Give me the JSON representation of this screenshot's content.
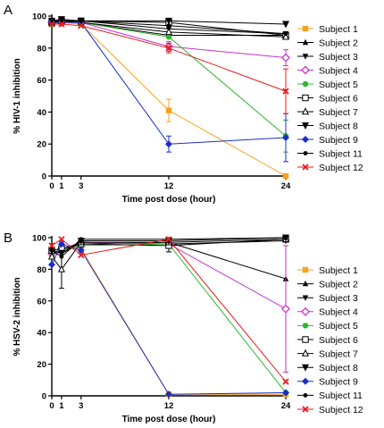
{
  "chart_data": [
    {
      "type": "line",
      "panel": "A",
      "ylabel": "% HIV-1 inhibition",
      "xlabel": "Time post dose (hour)",
      "x": [
        0,
        1,
        3,
        12,
        24
      ],
      "x_ticks": [
        0,
        1,
        3,
        12,
        24
      ],
      "y_ticks": [
        0,
        20,
        40,
        60,
        80,
        100
      ],
      "ylim": [
        0,
        100
      ],
      "xlim": [
        0,
        24
      ],
      "legend_position": "right",
      "series": [
        {
          "name": "Subject 1",
          "color": "#F7A21B",
          "marker": "square",
          "values": [
            96,
            96,
            95,
            41,
            0
          ],
          "err": [
            0,
            0,
            0,
            7,
            0
          ]
        },
        {
          "name": "Subject 2",
          "color": "#000000",
          "marker": "triangle-up",
          "values": [
            96,
            97,
            96,
            88,
            88
          ],
          "err": [
            0,
            0,
            0,
            0,
            0
          ]
        },
        {
          "name": "Subject 3",
          "color": "#000000",
          "marker": "triangle-down",
          "values": [
            97,
            97,
            97,
            92,
            89
          ],
          "err": [
            0,
            0,
            0,
            0,
            0
          ]
        },
        {
          "name": "Subject 4",
          "color": "#C832C8",
          "marker": "diamond-open",
          "values": [
            96,
            96,
            96,
            81,
            74
          ],
          "err": [
            0,
            0,
            0,
            3,
            5
          ]
        },
        {
          "name": "Subject 5",
          "color": "#2DB82D",
          "marker": "circle",
          "values": [
            95,
            96,
            96,
            87,
            25
          ],
          "err": [
            0,
            0,
            0,
            0,
            10
          ]
        },
        {
          "name": "Subject 6",
          "color": "#000000",
          "marker": "square-open",
          "values": [
            96,
            97,
            97,
            96,
            88
          ],
          "err": [
            0,
            0,
            0,
            2,
            0
          ]
        },
        {
          "name": "Subject 7",
          "color": "#000000",
          "marker": "triangle-open",
          "values": [
            96,
            97,
            96,
            90,
            87
          ],
          "err": [
            0,
            0,
            0,
            0,
            0
          ]
        },
        {
          "name": "Subject 8",
          "color": "#000000",
          "marker": "triangle-down-big",
          "values": [
            97,
            98,
            97,
            97,
            95
          ],
          "err": [
            0,
            0,
            0,
            0,
            0
          ]
        },
        {
          "name": "Subject 9",
          "color": "#1A2DC8",
          "marker": "diamond",
          "values": [
            96,
            96,
            96,
            20,
            24
          ],
          "err": [
            0,
            0,
            0,
            5,
            15
          ]
        },
        {
          "name": "Subject 11",
          "color": "#000000",
          "marker": "dot",
          "values": [
            96,
            97,
            97,
            94,
            89
          ],
          "err": [
            0,
            0,
            0,
            0,
            0
          ]
        },
        {
          "name": "Subject 12",
          "color": "#E81C1C",
          "marker": "x",
          "values": [
            95,
            95,
            94,
            80,
            53
          ],
          "err": [
            0,
            0,
            0,
            3,
            14
          ]
        }
      ]
    },
    {
      "type": "line",
      "panel": "B",
      "ylabel": "% HSV-2 inhibition",
      "xlabel": "Time post dose (hour)",
      "x": [
        0,
        1,
        3,
        12,
        24
      ],
      "x_ticks": [
        0,
        1,
        3,
        12,
        24
      ],
      "y_ticks": [
        0,
        20,
        40,
        60,
        80,
        100
      ],
      "ylim": [
        0,
        100
      ],
      "xlim": [
        0,
        24
      ],
      "legend_position": "right",
      "series": [
        {
          "name": "Subject 1",
          "color": "#F7A21B",
          "marker": "square",
          "values": [
            88,
            93,
            93,
            1,
            1
          ],
          "err": [
            0,
            0,
            0,
            0,
            0
          ]
        },
        {
          "name": "Subject 2",
          "color": "#000000",
          "marker": "triangle-up",
          "values": [
            90,
            92,
            96,
            97,
            74
          ],
          "err": [
            0,
            0,
            0,
            0,
            0
          ]
        },
        {
          "name": "Subject 3",
          "color": "#000000",
          "marker": "triangle-down",
          "values": [
            92,
            90,
            97,
            96,
            98
          ],
          "err": [
            0,
            0,
            0,
            0,
            0
          ]
        },
        {
          "name": "Subject 4",
          "color": "#C832C8",
          "marker": "diamond-open",
          "values": [
            90,
            93,
            97,
            96,
            55
          ],
          "err": [
            0,
            0,
            0,
            0,
            40
          ]
        },
        {
          "name": "Subject 5",
          "color": "#2DB82D",
          "marker": "circle",
          "values": [
            91,
            92,
            95,
            96,
            2
          ],
          "err": [
            0,
            0,
            0,
            0,
            0
          ]
        },
        {
          "name": "Subject 6",
          "color": "#000000",
          "marker": "square-open",
          "values": [
            92,
            93,
            96,
            95,
            99
          ],
          "err": [
            0,
            0,
            0,
            4,
            0
          ]
        },
        {
          "name": "Subject 7",
          "color": "#000000",
          "marker": "triangle-open",
          "values": [
            88,
            80,
            97,
            97,
            99
          ],
          "err": [
            0,
            12,
            0,
            0,
            0
          ]
        },
        {
          "name": "Subject 8",
          "color": "#000000",
          "marker": "triangle-down-big",
          "values": [
            92,
            90,
            98,
            98,
            100
          ],
          "err": [
            0,
            0,
            0,
            0,
            0
          ]
        },
        {
          "name": "Subject 9",
          "color": "#1A2DC8",
          "marker": "diamond",
          "values": [
            83,
            96,
            92,
            1,
            2
          ],
          "err": [
            0,
            0,
            0,
            0,
            0
          ]
        },
        {
          "name": "Subject 11",
          "color": "#000000",
          "marker": "dot",
          "values": [
            92,
            88,
            99,
            99,
            100
          ],
          "err": [
            0,
            0,
            0,
            0,
            0
          ]
        },
        {
          "name": "Subject 12",
          "color": "#E81C1C",
          "marker": "x",
          "values": [
            95,
            99,
            89,
            99,
            9
          ],
          "err": [
            0,
            0,
            0,
            0,
            0
          ]
        }
      ]
    }
  ]
}
